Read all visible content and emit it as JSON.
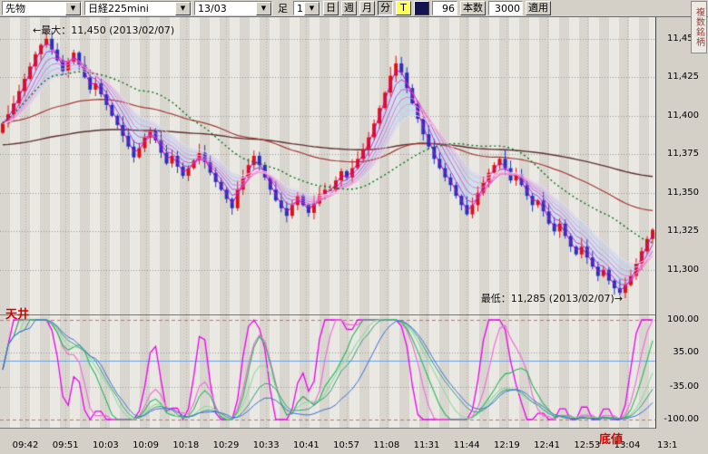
{
  "toolbar": {
    "instrument_type": "先物",
    "symbol": "日経225mini",
    "contract_month": "13/03",
    "timeframe_label": "足",
    "interval_value": "1",
    "interval_buttons": [
      "日",
      "週",
      "月",
      "分"
    ],
    "t_button": "T",
    "bars_value": "96",
    "bars_button": "本数",
    "count_value": "3000",
    "apply_button": "適用",
    "multi_symbol_tab": "複数銘柄"
  },
  "annotations": {
    "max_label": "←最大：11,450 (2013/02/07)",
    "min_label": "最低：11,285 (2013/02/07)→",
    "ceiling": "天井",
    "bottom": "底値"
  },
  "price_axis": {
    "tick_labels": [
      "11,450",
      "11,425",
      "11,400",
      "11,375",
      "11,350",
      "11,325",
      "11,300"
    ],
    "tick_values": [
      11450,
      11425,
      11400,
      11375,
      11350,
      11325,
      11300
    ]
  },
  "chart_data": {
    "type": "candlestick",
    "symbol": "日経225mini 13/03 1分足",
    "price_range": {
      "min": 11271,
      "max": 11464
    },
    "session_high": 11450,
    "session_low": 11285,
    "time_labels": [
      "09:42",
      "09:51",
      "10:03",
      "10:09",
      "10:18",
      "10:29",
      "10:33",
      "10:41",
      "10:57",
      "11:08",
      "11:31",
      "11:44",
      "12:19",
      "12:41",
      "12:53",
      "13:04",
      "13:1"
    ],
    "closes": [
      11395,
      11401,
      11408,
      11416,
      11424,
      11432,
      11440,
      11446,
      11450,
      11443,
      11436,
      11429,
      11435,
      11441,
      11433,
      11425,
      11417,
      11421,
      11414,
      11407,
      11400,
      11394,
      11387,
      11380,
      11373,
      11379,
      11386,
      11391,
      11384,
      11376,
      11369,
      11374,
      11367,
      11361,
      11366,
      11371,
      11376,
      11370,
      11363,
      11357,
      11352,
      11346,
      11340,
      11352,
      11360,
      11368,
      11374,
      11368,
      11360,
      11352,
      11345,
      11340,
      11335,
      11342,
      11348,
      11342,
      11337,
      11343,
      11349,
      11352,
      11352,
      11358,
      11364,
      11360,
      11366,
      11372,
      11378,
      11386,
      11395,
      11405,
      11415,
      11426,
      11434,
      11428,
      11418,
      11408,
      11398,
      11388,
      11380,
      11372,
      11366,
      11360,
      11355,
      11348,
      11342,
      11336,
      11342,
      11350,
      11357,
      11363,
      11368,
      11372,
      11366,
      11358,
      11362,
      11355,
      11348,
      11342,
      11345,
      11338,
      11330,
      11325,
      11330,
      11322,
      11315,
      11310,
      11315,
      11308,
      11302,
      11296,
      11300,
      11293,
      11288,
      11285,
      11290,
      11296,
      11304,
      11312,
      11320,
      11326
    ],
    "candle_colors": {
      "up": "#dd1111",
      "down": "#2233bb"
    },
    "overlays": {
      "ribbon_periods": [
        2,
        4,
        6,
        8,
        10,
        12,
        14
      ],
      "ribbon_colors": [
        "#cc00cc",
        "#d929cc",
        "#e24fcc",
        "#ea73cd",
        "#f193d2",
        "#f6b4dd",
        "#fad3ea"
      ],
      "ribbon_fill": "rgba(168,219,247,0.45)",
      "green_ma": {
        "period": 26,
        "color": "#007711"
      },
      "mid_ma": {
        "period": 60,
        "color": "#a33a33",
        "seed": 11396
      },
      "long_ma": {
        "period": 160,
        "color": "#5f2f2f",
        "seed": 11381
      }
    },
    "oscillator": {
      "tick_labels": [
        "100.00",
        "35.00",
        "-35.00",
        "-100.00"
      ],
      "tick_values": [
        100,
        35,
        -35,
        -100
      ],
      "ref_lines": [
        {
          "value": 100,
          "color": "#e06077",
          "dash": [
            4,
            3
          ]
        },
        {
          "value": 35,
          "color": "#999999",
          "dash": [
            1,
            2
          ]
        },
        {
          "value": -35,
          "color": "#999999",
          "dash": [
            1,
            2
          ]
        },
        {
          "value": -100,
          "color": "#e06077",
          "dash": [
            4,
            3
          ]
        },
        {
          "value": 18,
          "color": "#6aa0e8",
          "dash": []
        }
      ],
      "lines": [
        {
          "period": 7,
          "smooth": 2,
          "color": "#ee00ee",
          "width": 1.3
        },
        {
          "period": 11,
          "smooth": 3,
          "color": "#ef6fd8",
          "width": 1.2
        },
        {
          "period": 17,
          "smooth": 3,
          "color": "#22bb55",
          "width": 1.1
        },
        {
          "period": 23,
          "smooth": 4,
          "color": "#8fdc9f",
          "width": 1.1
        },
        {
          "period": 29,
          "smooth": 5,
          "color": "#2f9e77",
          "width": 1.0
        },
        {
          "period": 45,
          "smooth": 6,
          "color": "#3b6fd6",
          "width": 1.0
        }
      ]
    },
    "grid_color": "#9a9a9a"
  }
}
